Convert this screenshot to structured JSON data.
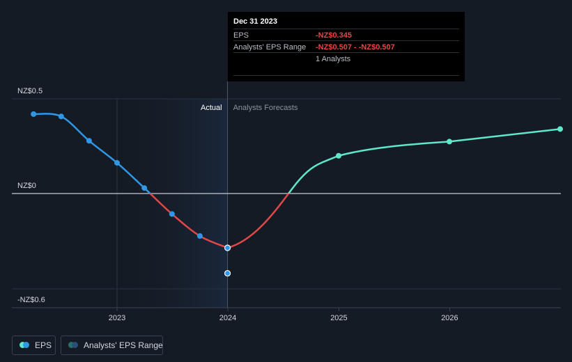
{
  "chart_data": {
    "type": "line",
    "y_tick_labels": [
      "NZ$0.5",
      "NZ$0",
      "-NZ$0.6"
    ],
    "x_tick_labels": [
      "2023",
      "2024",
      "2025",
      "2026"
    ],
    "ylim": [
      -0.6,
      0.6
    ],
    "region_labels": {
      "actual": "Actual",
      "forecast": "Analysts Forecasts"
    },
    "series": [
      {
        "name": "EPS",
        "x": [
          "2022-04-01",
          "2022-07-01",
          "2022-10-01",
          "2023-01-01",
          "2023-04-01",
          "2023-07-01",
          "2023-10-01",
          "2023-12-31"
        ],
        "values": [
          0.505,
          0.49,
          0.335,
          0.195,
          0.035,
          -0.13,
          -0.27,
          -0.345
        ]
      },
      {
        "name": "Forecast",
        "x": [
          "2023-12-31",
          "2024-12-31",
          "2025-12-31",
          "2026-12-31"
        ],
        "values": [
          -0.345,
          0.24,
          0.33,
          0.41
        ]
      }
    ],
    "range_point": {
      "x": "2023-12-31",
      "low": -0.507,
      "high": -0.507
    },
    "colors": {
      "eps_positive": "#2f97e6",
      "eps_negative": "#e04848",
      "forecast_positive": "#5ee8c8",
      "zero_line": "#c8ccd2"
    }
  },
  "tooltip": {
    "date": "Dec 31 2023",
    "eps_label": "EPS",
    "eps_value": "-NZ$0.345",
    "range_label": "Analysts' EPS Range",
    "range_value": "-NZ$0.507 - -NZ$0.507",
    "analysts": "1 Analysts"
  },
  "legend": {
    "eps_label": "EPS",
    "range_label": "Analysts' EPS Range"
  }
}
